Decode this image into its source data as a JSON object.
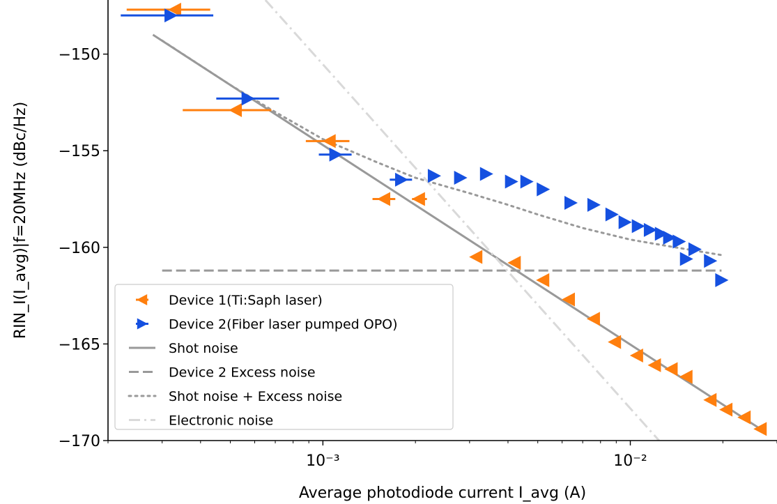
{
  "chart_data": {
    "type": "scatter",
    "title": "",
    "xlabel": "Average photodiode current I_avg (A)",
    "ylabel": "RIN_I(I_avg)|f=20MHz (dBc/Hz)",
    "xscale": "log",
    "xlim": [
      0.0002,
      0.03
    ],
    "ylim": [
      -170,
      -147.2
    ],
    "x_ticks": [
      {
        "value": 0.001,
        "label": "10⁻³"
      },
      {
        "value": 0.01,
        "label": "10⁻²"
      }
    ],
    "y_ticks": [
      {
        "value": -150,
        "label": "−150"
      },
      {
        "value": -155,
        "label": "−155"
      },
      {
        "value": -160,
        "label": "−160"
      },
      {
        "value": -165,
        "label": "−165"
      },
      {
        "value": -170,
        "label": "−170"
      }
    ],
    "grid": false,
    "legend_position": "lower-left",
    "series": [
      {
        "name": "Device 1(Ti:Saph laser)",
        "kind": "points",
        "marker": "triangle-left",
        "color": "#ff7f0e",
        "points": [
          {
            "x": 0.00033,
            "y": -147.7,
            "xerr": [
              0.00023,
              0.00043
            ]
          },
          {
            "x": 0.00052,
            "y": -152.9,
            "xerr": [
              0.00035,
              0.00068
            ]
          },
          {
            "x": 0.00105,
            "y": -154.5,
            "xerr": [
              0.00088,
              0.00122
            ]
          },
          {
            "x": 0.00158,
            "y": -157.5,
            "xerr": [
              0.00145,
              0.00172
            ]
          },
          {
            "x": 0.00205,
            "y": -157.5,
            "xerr": [
              0.00195,
              0.00218
            ]
          },
          {
            "x": 0.00315,
            "y": -160.5
          },
          {
            "x": 0.0042,
            "y": -160.8
          },
          {
            "x": 0.0052,
            "y": -161.7
          },
          {
            "x": 0.0063,
            "y": -162.7
          },
          {
            "x": 0.0076,
            "y": -163.7
          },
          {
            "x": 0.0089,
            "y": -164.9
          },
          {
            "x": 0.0105,
            "y": -165.6
          },
          {
            "x": 0.012,
            "y": -166.1
          },
          {
            "x": 0.0136,
            "y": -166.3
          },
          {
            "x": 0.0152,
            "y": -166.7
          },
          {
            "x": 0.0182,
            "y": -167.9
          },
          {
            "x": 0.0205,
            "y": -168.4
          },
          {
            "x": 0.0235,
            "y": -168.8
          },
          {
            "x": 0.0265,
            "y": -169.4
          }
        ]
      },
      {
        "name": "Device 2(Fiber laser pumped OPO)",
        "kind": "points",
        "marker": "triangle-right",
        "color": "#1550e0",
        "points": [
          {
            "x": 0.00032,
            "y": -148.0,
            "xerr": [
              0.00022,
              0.00044
            ]
          },
          {
            "x": 0.00057,
            "y": -152.3,
            "xerr": [
              0.00045,
              0.00072
            ]
          },
          {
            "x": 0.0011,
            "y": -155.2,
            "xerr": [
              0.00097,
              0.00124
            ]
          },
          {
            "x": 0.0018,
            "y": -156.5,
            "xerr": [
              0.00165,
              0.00195
            ]
          },
          {
            "x": 0.0023,
            "y": -156.3
          },
          {
            "x": 0.0028,
            "y": -156.4
          },
          {
            "x": 0.0034,
            "y": -156.2
          },
          {
            "x": 0.0041,
            "y": -156.6
          },
          {
            "x": 0.0046,
            "y": -156.6
          },
          {
            "x": 0.0052,
            "y": -157.0
          },
          {
            "x": 0.0064,
            "y": -157.7
          },
          {
            "x": 0.0076,
            "y": -157.8
          },
          {
            "x": 0.0087,
            "y": -158.3
          },
          {
            "x": 0.0096,
            "y": -158.7
          },
          {
            "x": 0.0106,
            "y": -158.9
          },
          {
            "x": 0.0116,
            "y": -159.1
          },
          {
            "x": 0.0126,
            "y": -159.3
          },
          {
            "x": 0.0134,
            "y": -159.5
          },
          {
            "x": 0.0144,
            "y": -159.7
          },
          {
            "x": 0.0152,
            "y": -160.6
          },
          {
            "x": 0.0162,
            "y": -160.1
          },
          {
            "x": 0.0182,
            "y": -160.7
          },
          {
            "x": 0.0198,
            "y": -161.7
          }
        ]
      },
      {
        "name": "Shot noise",
        "kind": "line",
        "style": "solid",
        "color": "#999999",
        "points": [
          {
            "x": 0.00028,
            "y": -149.0
          },
          {
            "x": 0.0265,
            "y": -169.4
          }
        ]
      },
      {
        "name": "Device 2 Excess noise",
        "kind": "line",
        "style": "dashed",
        "color": "#999999",
        "points": [
          {
            "x": 0.0003,
            "y": -161.2
          },
          {
            "x": 0.0198,
            "y": -161.2
          }
        ]
      },
      {
        "name": "Shot noise + Excess noise",
        "kind": "line",
        "style": "dotted",
        "color": "#999999",
        "points": [
          {
            "x": 0.0003,
            "y": -149.3
          },
          {
            "x": 0.0005,
            "y": -151.6
          },
          {
            "x": 0.0007,
            "y": -153.0
          },
          {
            "x": 0.001,
            "y": -154.4
          },
          {
            "x": 0.0015,
            "y": -155.6
          },
          {
            "x": 0.002,
            "y": -156.4
          },
          {
            "x": 0.003,
            "y": -157.2
          },
          {
            "x": 0.004,
            "y": -157.8
          },
          {
            "x": 0.005,
            "y": -158.3
          },
          {
            "x": 0.007,
            "y": -159.0
          },
          {
            "x": 0.01,
            "y": -159.6
          },
          {
            "x": 0.014,
            "y": -160.0
          },
          {
            "x": 0.0198,
            "y": -160.4
          }
        ]
      },
      {
        "name": "Electronic noise",
        "kind": "line",
        "style": "dashdot",
        "color": "#d9d9d9",
        "points": [
          {
            "x": 0.00065,
            "y": -147.2
          },
          {
            "x": 0.0124,
            "y": -170.0
          }
        ]
      }
    ]
  }
}
